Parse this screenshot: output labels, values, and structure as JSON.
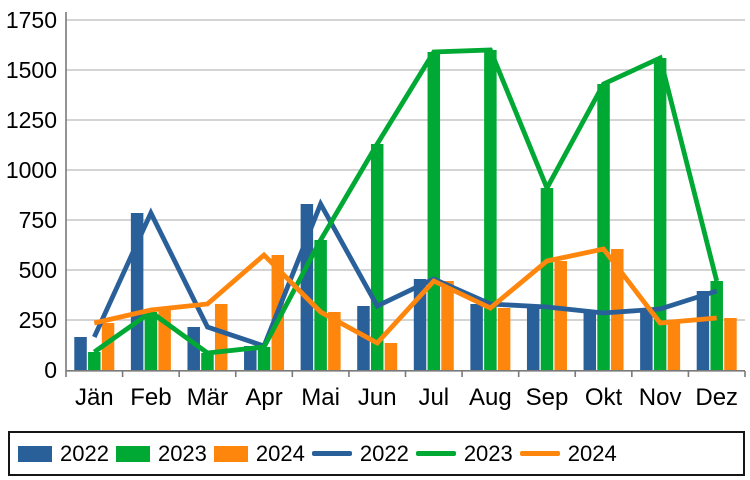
{
  "chart_data": {
    "type": "bar",
    "subtype": "column-and-line-combo",
    "title": "",
    "xlabel": "",
    "ylabel": "",
    "categories": [
      "Jän",
      "Feb",
      "Mär",
      "Apr",
      "Mai",
      "Jun",
      "Jul",
      "Aug",
      "Sep",
      "Okt",
      "Nov",
      "Dez"
    ],
    "series": [
      {
        "name": "2022",
        "role": "bar",
        "color": "#2A6099",
        "values": [
          165,
          785,
          215,
          120,
          830,
          320,
          455,
          330,
          315,
          285,
          305,
          395
        ]
      },
      {
        "name": "2023",
        "role": "bar",
        "color": "#00A933",
        "values": [
          90,
          290,
          85,
          115,
          650,
          1130,
          1590,
          1600,
          910,
          1430,
          1560,
          445
        ]
      },
      {
        "name": "2024",
        "role": "bar",
        "color": "#FF860D",
        "values": [
          235,
          300,
          330,
          575,
          290,
          135,
          445,
          310,
          545,
          605,
          235,
          260
        ]
      },
      {
        "name": "2022",
        "role": "line",
        "color": "#2A6099",
        "values": [
          165,
          785,
          215,
          120,
          830,
          320,
          455,
          330,
          315,
          285,
          305,
          395
        ]
      },
      {
        "name": "2023",
        "role": "line",
        "color": "#00A933",
        "values": [
          90,
          290,
          85,
          115,
          650,
          1130,
          1590,
          1600,
          910,
          1430,
          1560,
          445
        ]
      },
      {
        "name": "2024",
        "role": "line",
        "color": "#FF860D",
        "values": [
          235,
          300,
          330,
          575,
          290,
          135,
          445,
          310,
          545,
          605,
          235,
          260
        ]
      }
    ],
    "ylim": [
      0,
      1750
    ],
    "y_ticks": [
      0,
      250,
      500,
      750,
      1000,
      1250,
      1500,
      1750
    ],
    "grid": true,
    "legend_position": "bottom"
  },
  "style": {
    "grid_color": "#c6c6c6",
    "axis_color": "#7a7a7a",
    "text_color": "#000000",
    "legend_border_color": "#151515",
    "background": "#ffffff"
  }
}
